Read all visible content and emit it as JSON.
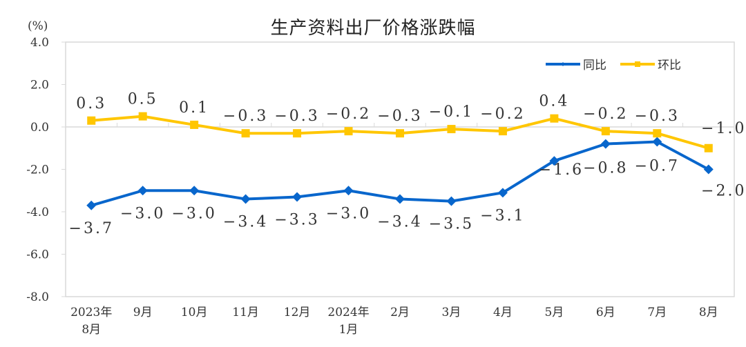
{
  "chart_data": {
    "type": "line",
    "title": "生产资料出厂价格涨跌幅",
    "ylabel": "(%)",
    "xlabel": "",
    "ylim": [
      -8.0,
      4.0
    ],
    "yticks": [
      "4.0",
      "2.0",
      "0.0",
      "-2.0",
      "-4.0",
      "-6.0",
      "-8.0"
    ],
    "grid": false,
    "legend_position": "top-right",
    "categories": [
      "2023年\n8月",
      "9月",
      "10月",
      "11月",
      "12月",
      "2024年\n1月",
      "2月",
      "3月",
      "4月",
      "5月",
      "6月",
      "7月",
      "8月"
    ],
    "series": [
      {
        "name": "同比",
        "color": "#0866CC",
        "marker": "diamond",
        "values": [
          -3.7,
          -3.0,
          -3.0,
          -3.4,
          -3.3,
          -3.0,
          -3.4,
          -3.5,
          -3.1,
          -1.6,
          -0.8,
          -0.7,
          -2.0
        ]
      },
      {
        "name": "环比",
        "color": "#FFC600",
        "marker": "square",
        "values": [
          0.3,
          0.5,
          0.1,
          -0.3,
          -0.3,
          -0.2,
          -0.3,
          -0.1,
          -0.2,
          0.4,
          -0.2,
          -0.3,
          -1.0
        ]
      }
    ]
  }
}
